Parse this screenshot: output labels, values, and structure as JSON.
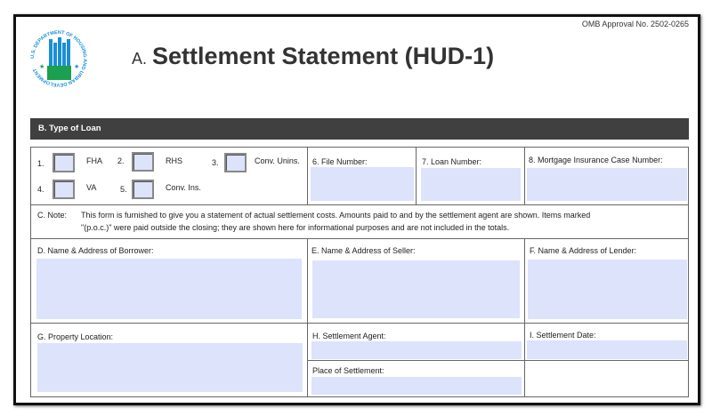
{
  "header": {
    "omb": "OMB Approval No. 2502-0265",
    "title_prefix": "A.",
    "title": "Settlement Statement (HUD-1)",
    "seal_text": "U.S. DEPARTMENT OF HOUSING AND URBAN DEVELOPMENT"
  },
  "section_b": {
    "title": "B. Type of Loan",
    "options": [
      {
        "num": "1.",
        "label": "FHA"
      },
      {
        "num": "2.",
        "label": "RHS"
      },
      {
        "num": "3.",
        "label": "Conv. Unins."
      },
      {
        "num": "4.",
        "label": "VA"
      },
      {
        "num": "5.",
        "label": "Conv. Ins."
      }
    ],
    "file_number": "6. File Number:",
    "loan_number": "7. Loan Number:",
    "mortgage_case": "8. Mortgage Insurance Case Number:"
  },
  "note": {
    "label": "C. Note:",
    "line1": "This form is furnished to give you a statement of actual settlement costs. Amounts paid to and by the settlement agent are shown. Items marked",
    "line2": "\"(p.o.c.)\" were paid outside the closing; they are shown here for informational purposes and are not included in the totals."
  },
  "fields": {
    "borrower": "D. Name & Address of Borrower:",
    "seller": "E. Name & Address of Seller:",
    "lender": "F. Name & Address of Lender:",
    "property": "G. Property Location:",
    "agent": "H. Settlement Agent:",
    "date": "I. Settlement Date:",
    "place": "Place of Settlement:"
  },
  "colors": {
    "field_bg": "#dce3fb",
    "bar_bg": "#404040",
    "seal_blue": "#1a8fd6",
    "seal_green": "#1aa050"
  }
}
